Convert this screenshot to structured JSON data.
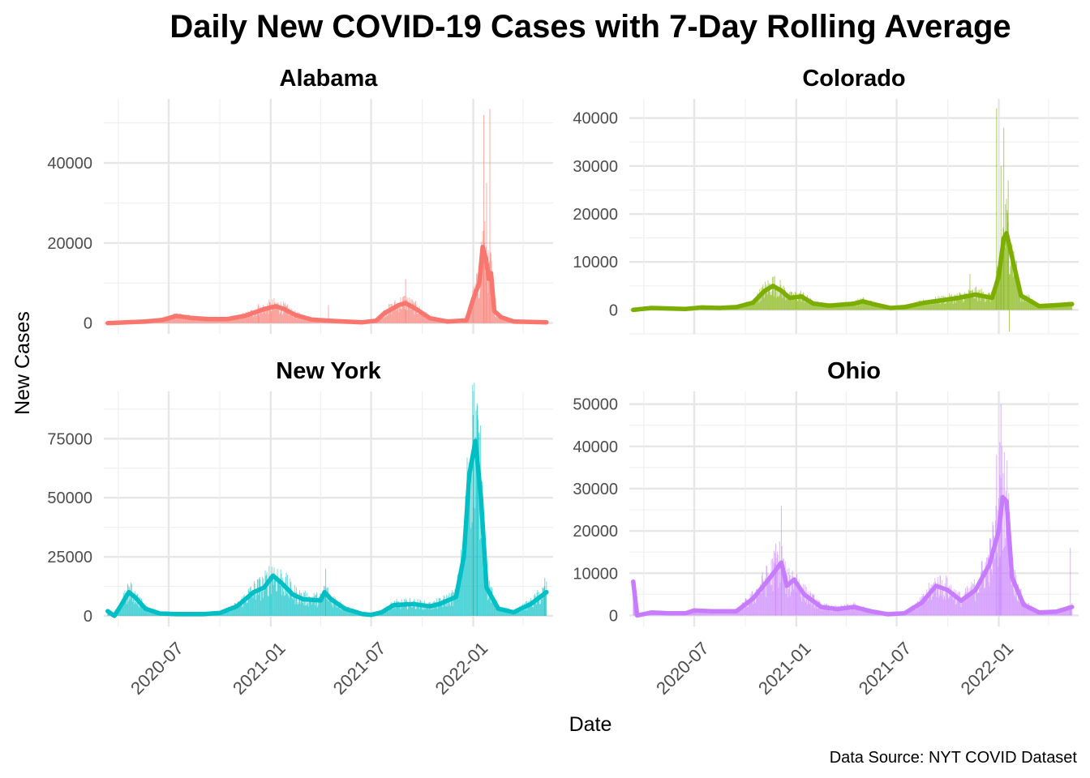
{
  "chart_data": {
    "type": "line",
    "title": "Daily New COVID-19 Cases with 7-Day Rolling Average",
    "xlabel": "Date",
    "ylabel": "New Cases",
    "caption": "Data Source: NYT COVID Dataset",
    "x_tick_labels": [
      "2020-07",
      "2021-01",
      "2021-07",
      "2022-01"
    ],
    "x_ticks": [
      "2020-07-01",
      "2021-01-01",
      "2021-07-01",
      "2022-01-01"
    ],
    "xlim": [
      "2020-03-06",
      "2022-05-25"
    ],
    "grid": true,
    "legend": "none",
    "bars": "daily new cases (thin bars)",
    "line": "7-day rolling average",
    "panels": [
      {
        "name": "Alabama",
        "color": "#F8766D",
        "ylim": [
          -2700,
          56000
        ],
        "y_ticks": [
          0,
          20000,
          40000
        ],
        "x_range": [
          "2020-03-13",
          "2022-05-13"
        ],
        "rolling_average": [
          [
            "2020-03-13",
            0
          ],
          [
            "2020-04-15",
            200
          ],
          [
            "2020-05-20",
            400
          ],
          [
            "2020-06-20",
            800
          ],
          [
            "2020-07-15",
            1800
          ],
          [
            "2020-08-10",
            1300
          ],
          [
            "2020-09-10",
            1000
          ],
          [
            "2020-10-15",
            1000
          ],
          [
            "2020-11-15",
            1800
          ],
          [
            "2020-12-20",
            3500
          ],
          [
            "2021-01-10",
            4200
          ],
          [
            "2021-01-25",
            3500
          ],
          [
            "2021-02-15",
            2000
          ],
          [
            "2021-03-15",
            900
          ],
          [
            "2021-04-15",
            600
          ],
          [
            "2021-05-15",
            400
          ],
          [
            "2021-06-15",
            200
          ],
          [
            "2021-07-10",
            600
          ],
          [
            "2021-07-25",
            2500
          ],
          [
            "2021-08-20",
            4500
          ],
          [
            "2021-09-01",
            5000
          ],
          [
            "2021-09-20",
            3500
          ],
          [
            "2021-10-15",
            1200
          ],
          [
            "2021-11-15",
            400
          ],
          [
            "2021-12-20",
            700
          ],
          [
            "2022-01-01",
            6000
          ],
          [
            "2022-01-12",
            10000
          ],
          [
            "2022-01-18",
            19000
          ],
          [
            "2022-01-24",
            16000
          ],
          [
            "2022-01-29",
            11000
          ],
          [
            "2022-02-02",
            12500
          ],
          [
            "2022-02-08",
            3000
          ],
          [
            "2022-02-20",
            1500
          ],
          [
            "2022-03-15",
            400
          ],
          [
            "2022-05-13",
            200
          ]
        ],
        "daily_spikes": [
          [
            "2020-12-10",
            4800
          ],
          [
            "2021-04-15",
            4500
          ],
          [
            "2021-09-01",
            11000
          ],
          [
            "2022-01-20",
            52000
          ],
          [
            "2022-01-31",
            53500
          ],
          [
            "2022-01-25",
            35000
          ]
        ]
      },
      {
        "name": "Colorado",
        "color": "#7CAE00",
        "ylim": [
          -5000,
          44000
        ],
        "y_ticks": [
          0,
          10000,
          20000,
          30000,
          40000
        ],
        "x_range": [
          "2020-03-13",
          "2022-05-13"
        ],
        "rolling_average": [
          [
            "2020-03-13",
            0
          ],
          [
            "2020-04-15",
            400
          ],
          [
            "2020-05-15",
            300
          ],
          [
            "2020-06-15",
            200
          ],
          [
            "2020-07-15",
            500
          ],
          [
            "2020-08-15",
            400
          ],
          [
            "2020-09-15",
            600
          ],
          [
            "2020-10-15",
            1500
          ],
          [
            "2020-11-05",
            4000
          ],
          [
            "2020-11-20",
            5000
          ],
          [
            "2020-12-05",
            4000
          ],
          [
            "2020-12-20",
            2500
          ],
          [
            "2021-01-10",
            2800
          ],
          [
            "2021-02-01",
            1300
          ],
          [
            "2021-03-01",
            900
          ],
          [
            "2021-04-15",
            1300
          ],
          [
            "2021-05-01",
            1800
          ],
          [
            "2021-05-20",
            1200
          ],
          [
            "2021-06-20",
            400
          ],
          [
            "2021-07-15",
            600
          ],
          [
            "2021-08-20",
            1500
          ],
          [
            "2021-09-20",
            2000
          ],
          [
            "2021-10-20",
            2500
          ],
          [
            "2021-11-20",
            3200
          ],
          [
            "2021-12-20",
            2500
          ],
          [
            "2022-01-01",
            7000
          ],
          [
            "2022-01-10",
            15000
          ],
          [
            "2022-01-15",
            16000
          ],
          [
            "2022-01-25",
            11000
          ],
          [
            "2022-02-10",
            3000
          ],
          [
            "2022-03-15",
            800
          ],
          [
            "2022-04-15",
            1000
          ],
          [
            "2022-05-13",
            1200
          ]
        ],
        "daily_spikes": [
          [
            "2021-12-28",
            42000
          ],
          [
            "2022-01-05",
            30000
          ],
          [
            "2022-01-18",
            27000
          ],
          [
            "2022-01-10",
            38000
          ],
          [
            "2022-01-20",
            -4500
          ],
          [
            "2021-11-10",
            7500
          ]
        ]
      },
      {
        "name": "New York",
        "color": "#00BFC4",
        "ylim": [
          -4500,
          95000
        ],
        "y_ticks": [
          0,
          25000,
          50000,
          75000
        ],
        "x_range": [
          "2020-03-13",
          "2022-05-13"
        ],
        "rolling_average": [
          [
            "2020-03-13",
            2000
          ],
          [
            "2020-03-25",
            0
          ],
          [
            "2020-04-05",
            4000
          ],
          [
            "2020-04-20",
            10000
          ],
          [
            "2020-05-01",
            8000
          ],
          [
            "2020-05-20",
            3000
          ],
          [
            "2020-06-15",
            1000
          ],
          [
            "2020-07-15",
            700
          ],
          [
            "2020-09-01",
            700
          ],
          [
            "2020-10-01",
            1200
          ],
          [
            "2020-11-01",
            4000
          ],
          [
            "2020-12-01",
            10000
          ],
          [
            "2020-12-20",
            12000
          ],
          [
            "2021-01-05",
            17000
          ],
          [
            "2021-01-20",
            14000
          ],
          [
            "2021-02-10",
            9000
          ],
          [
            "2021-03-01",
            7000
          ],
          [
            "2021-04-01",
            6500
          ],
          [
            "2021-04-08",
            10000
          ],
          [
            "2021-04-20",
            7000
          ],
          [
            "2021-05-15",
            3000
          ],
          [
            "2021-06-15",
            800
          ],
          [
            "2021-07-01",
            400
          ],
          [
            "2021-07-20",
            1500
          ],
          [
            "2021-08-10",
            4500
          ],
          [
            "2021-09-15",
            5000
          ],
          [
            "2021-10-15",
            4000
          ],
          [
            "2021-11-01",
            5000
          ],
          [
            "2021-12-01",
            8000
          ],
          [
            "2021-12-15",
            25000
          ],
          [
            "2021-12-25",
            60000
          ],
          [
            "2022-01-05",
            74000
          ],
          [
            "2022-01-15",
            50000
          ],
          [
            "2022-01-25",
            12000
          ],
          [
            "2022-02-15",
            3000
          ],
          [
            "2022-03-15",
            1500
          ],
          [
            "2022-04-15",
            5000
          ],
          [
            "2022-05-13",
            10000
          ]
        ],
        "daily_spikes": [
          [
            "2022-01-08",
            90000
          ],
          [
            "2022-01-01",
            85000
          ],
          [
            "2021-04-10",
            20000
          ],
          [
            "2022-05-10",
            16000
          ]
        ]
      },
      {
        "name": "Ohio",
        "color": "#C77CFF",
        "ylim": [
          -2600,
          53000
        ],
        "y_ticks": [
          0,
          10000,
          20000,
          30000,
          40000,
          50000
        ],
        "x_range": [
          "2020-03-13",
          "2022-05-13"
        ],
        "rolling_average": [
          [
            "2020-03-13",
            8000
          ],
          [
            "2020-03-20",
            0
          ],
          [
            "2020-04-15",
            700
          ],
          [
            "2020-05-15",
            500
          ],
          [
            "2020-06-15",
            500
          ],
          [
            "2020-07-01",
            1200
          ],
          [
            "2020-08-01",
            1000
          ],
          [
            "2020-09-15",
            1000
          ],
          [
            "2020-10-15",
            4000
          ],
          [
            "2020-11-15",
            9000
          ],
          [
            "2020-12-05",
            12500
          ],
          [
            "2020-12-15",
            7000
          ],
          [
            "2020-12-28",
            8500
          ],
          [
            "2021-01-15",
            5000
          ],
          [
            "2021-02-15",
            2000
          ],
          [
            "2021-03-15",
            1500
          ],
          [
            "2021-04-15",
            2000
          ],
          [
            "2021-05-15",
            1000
          ],
          [
            "2021-06-15",
            300
          ],
          [
            "2021-07-15",
            500
          ],
          [
            "2021-08-15",
            3000
          ],
          [
            "2021-09-10",
            7000
          ],
          [
            "2021-10-01",
            6000
          ],
          [
            "2021-10-25",
            3500
          ],
          [
            "2021-11-20",
            6000
          ],
          [
            "2021-12-15",
            12000
          ],
          [
            "2022-01-01",
            20000
          ],
          [
            "2022-01-08",
            28000
          ],
          [
            "2022-01-15",
            27000
          ],
          [
            "2022-01-25",
            9000
          ],
          [
            "2022-02-15",
            2500
          ],
          [
            "2022-03-15",
            700
          ],
          [
            "2022-04-15",
            900
          ],
          [
            "2022-05-13",
            2000
          ]
        ],
        "daily_spikes": [
          [
            "2020-12-05",
            26000
          ],
          [
            "2020-11-25",
            17000
          ],
          [
            "2021-12-28",
            38000
          ],
          [
            "2022-01-03",
            41000
          ],
          [
            "2022-01-05",
            50000
          ],
          [
            "2022-05-10",
            16000
          ]
        ]
      }
    ]
  }
}
